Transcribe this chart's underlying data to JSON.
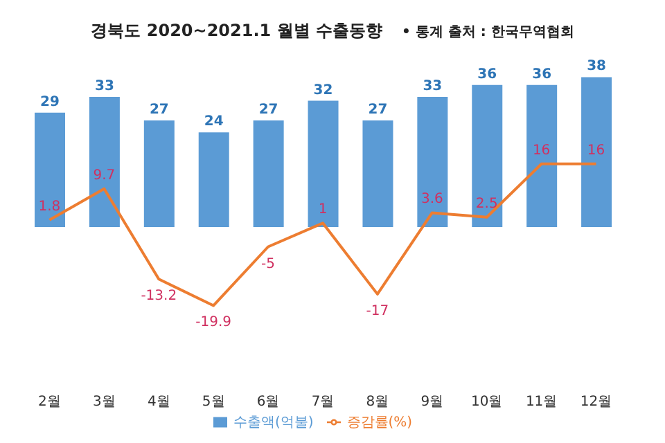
{
  "chart_data": {
    "type": "bar",
    "title": "경북도 2020~2021.1 월별 수출동향",
    "annotations": [
      "• 통계 출처 : 한국무역협회"
    ],
    "categories": [
      "2월",
      "3월",
      "4월",
      "5월",
      "6월",
      "7월",
      "8월",
      "9월",
      "10월",
      "11월",
      "12월"
    ],
    "series": [
      {
        "name": "수출액(억불)",
        "color": "#5b9bd5",
        "values": [
          29,
          33,
          27,
          24,
          27,
          32,
          27,
          33,
          36,
          36,
          38
        ]
      },
      {
        "name": "증감률(%)",
        "type": "line",
        "color": "#ed7d31",
        "values": [
          1.8,
          9.7,
          -13.2,
          -19.9,
          -5,
          1,
          -17,
          3.6,
          2.5,
          16,
          16
        ]
      }
    ],
    "tick_labels": "x",
    "legend": "bottom",
    "data_labels": true,
    "marker": "none"
  }
}
